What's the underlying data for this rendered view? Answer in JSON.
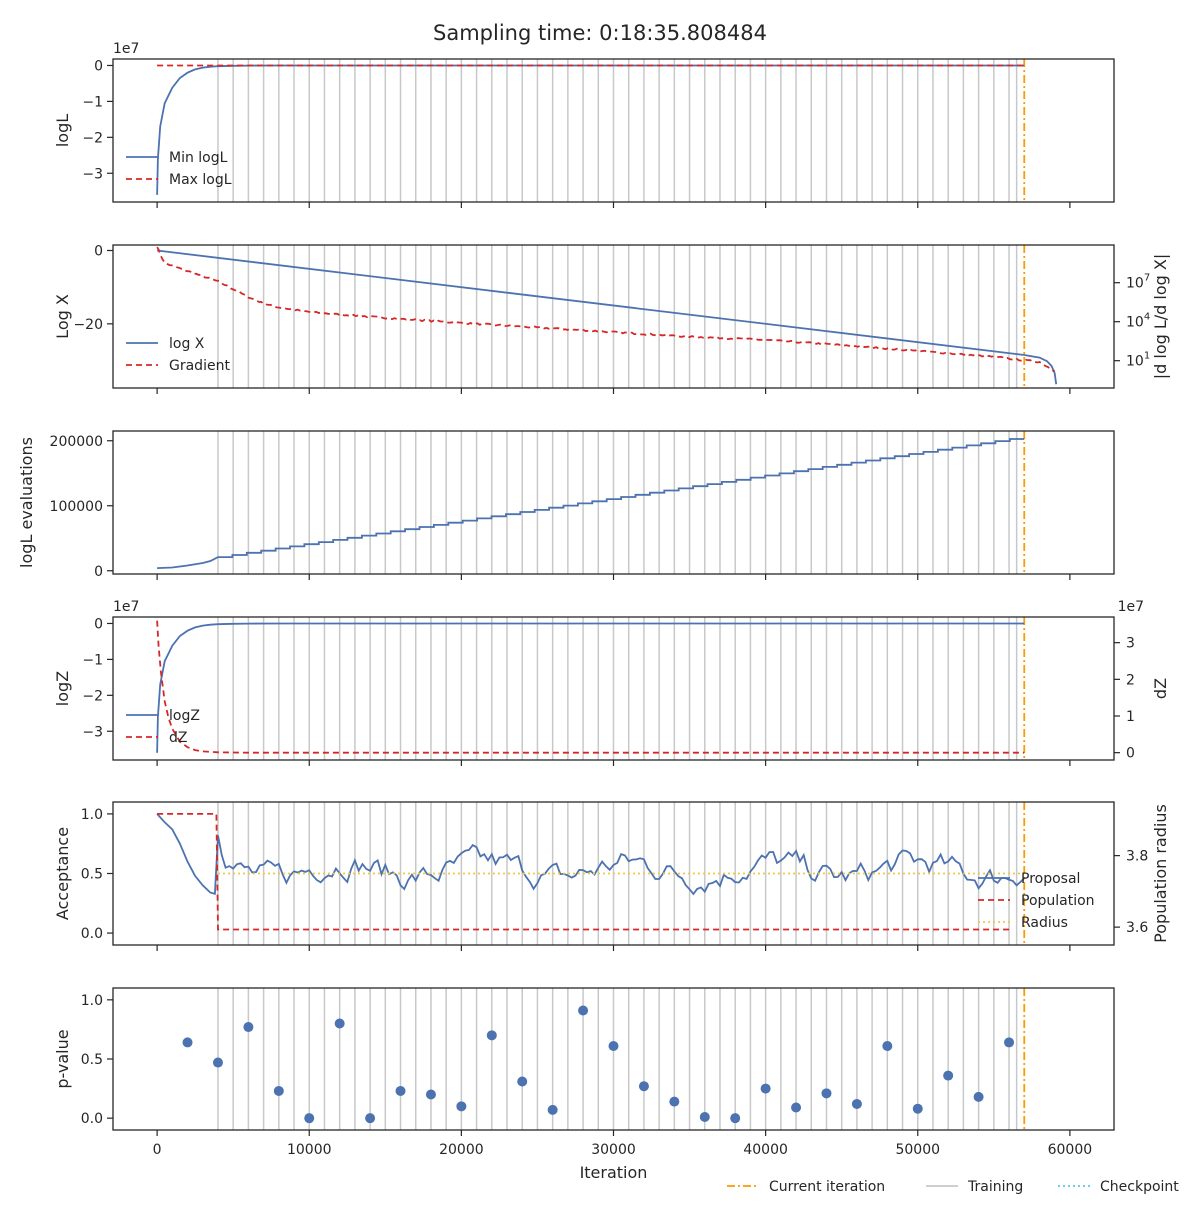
{
  "title": "Sampling time: 0:18:35.808484",
  "colors": {
    "blue": "#4c72b0",
    "red": "#d62728",
    "orange": "#ff9900",
    "grey": "#c8c8c8",
    "gold": "#f2c744",
    "cyan": "#5bc8e0"
  },
  "xlabel": "Iteration",
  "x_ticks": [
    0,
    10000,
    20000,
    30000,
    40000,
    50000,
    60000
  ],
  "x_tick_labels": [
    "0",
    "10000",
    "20000",
    "30000",
    "40000",
    "50000",
    "60000"
  ],
  "xlim": [
    -2900,
    62900
  ],
  "current_iteration": 57000,
  "training_iterations": [
    4000,
    5000,
    6000,
    7000,
    8000,
    9000,
    10000,
    11000,
    12000,
    13000,
    14000,
    15000,
    16000,
    17000,
    18000,
    19000,
    20000,
    21000,
    22000,
    23000,
    24000,
    25000,
    26000,
    27000,
    28000,
    29000,
    30000,
    31000,
    32000,
    33000,
    34000,
    35000,
    36000,
    37000,
    38000,
    39000,
    40000,
    41000,
    42000,
    43000,
    44000,
    45000,
    46000,
    47000,
    48000,
    49000,
    50000,
    51000,
    52000,
    53000,
    54000,
    55000,
    56000,
    56500
  ],
  "fig_legend": [
    "Current iteration",
    "Training",
    "Checkpoint"
  ],
  "chart_data": [
    {
      "type": "line",
      "panel": "logL",
      "ylabel": "logL",
      "y_ticks": [
        0,
        -1,
        -2,
        -3
      ],
      "y_tick_labels": [
        "0",
        "−1",
        "−2",
        "−3"
      ],
      "offset_label": "1e7",
      "ylim": [
        -3.8,
        0.18
      ],
      "unit": "1e7",
      "legend": [
        "Min logL",
        "Max logL"
      ],
      "series": [
        {
          "name": "Min logL",
          "style": "solid",
          "x": [
            0,
            50,
            200,
            500,
            1000,
            1500,
            2000,
            2500,
            3000,
            3500,
            4000,
            5000,
            6000,
            8000,
            57000
          ],
          "y": [
            -3.6,
            -2.6,
            -1.7,
            -1.05,
            -0.62,
            -0.35,
            -0.2,
            -0.11,
            -0.06,
            -0.035,
            -0.02,
            -0.008,
            -0.003,
            -0.001,
            0.0
          ]
        },
        {
          "name": "Max logL",
          "style": "dashed",
          "x": [
            0,
            57000
          ],
          "y": [
            0.0,
            0.0
          ]
        }
      ]
    },
    {
      "type": "line",
      "panel": "logX",
      "ylabel": "Log X",
      "y_ticks": [
        0,
        -20
      ],
      "y_tick_labels": [
        "0",
        "−20"
      ],
      "ylim": [
        -37.5,
        1.5
      ],
      "right_ylabel": "|d log L/d log X|",
      "right_ticks": [
        1,
        4,
        7
      ],
      "right_tick_labels": [
        "10",
        "10",
        "10"
      ],
      "right_tick_exponents": [
        "1",
        "4",
        "7"
      ],
      "right_ylim_log10": [
        -1.1,
        9.9
      ],
      "legend": [
        "log X",
        "Gradient"
      ],
      "series": [
        {
          "name": "log X",
          "style": "solid",
          "x": [
            0,
            57000,
            58000,
            58500,
            58800,
            59000,
            59100
          ],
          "y": [
            0,
            -28.5,
            -29.2,
            -30.2,
            -31.5,
            -33.5,
            -36.5
          ]
        },
        {
          "name": "Gradient",
          "style": "dashed",
          "log10": true,
          "x": [
            0,
            200,
            500,
            1000,
            2000,
            3000,
            4000,
            5000,
            6000,
            7000,
            8000,
            10000,
            12000,
            15000,
            20000,
            25000,
            30000,
            35000,
            40000,
            45000,
            50000,
            55000,
            58000,
            59000
          ],
          "y": [
            9.8,
            9.2,
            8.5,
            8.3,
            7.9,
            7.5,
            7.1,
            6.5,
            5.9,
            5.4,
            5.1,
            4.75,
            4.55,
            4.3,
            3.9,
            3.55,
            3.2,
            2.85,
            2.6,
            2.2,
            1.75,
            1.3,
            0.9,
            0.2
          ]
        }
      ]
    },
    {
      "type": "line",
      "panel": "likelihood_evaluations",
      "ylabel": "logL evaluations",
      "y_ticks": [
        0,
        100000,
        200000
      ],
      "y_tick_labels": [
        "0",
        "100000",
        "200000"
      ],
      "ylim": [
        -5000,
        215000
      ],
      "series": [
        {
          "name": "",
          "style": "step",
          "x": [
            0,
            1000,
            2000,
            3000,
            3500,
            4000,
            57000
          ],
          "y": [
            4000,
            5000,
            8000,
            12000,
            15000,
            21000,
            206000
          ]
        }
      ]
    },
    {
      "type": "line",
      "panel": "logZ",
      "ylabel": "logZ",
      "y_ticks": [
        0,
        -1,
        -2,
        -3
      ],
      "y_tick_labels": [
        "0",
        "−1",
        "−2",
        "−3"
      ],
      "offset_label": "1e7",
      "ylim": [
        -3.8,
        0.18
      ],
      "right_ylabel": "dZ",
      "right_ticks": [
        0,
        1,
        2,
        3
      ],
      "right_tick_labels": [
        "0",
        "1",
        "2",
        "3"
      ],
      "right_offset_label": "1e7",
      "right_ylim": [
        -0.2,
        3.7
      ],
      "legend": [
        "logZ",
        "dZ"
      ],
      "series": [
        {
          "name": "logZ",
          "style": "solid",
          "x": [
            0,
            50,
            200,
            500,
            1000,
            1500,
            2000,
            2500,
            3000,
            3500,
            4000,
            5000,
            6000,
            8000,
            57000
          ],
          "y": [
            -3.6,
            -2.6,
            -1.7,
            -1.05,
            -0.62,
            -0.35,
            -0.2,
            -0.11,
            -0.06,
            -0.035,
            -0.02,
            -0.008,
            -0.003,
            -0.001,
            0.0
          ]
        },
        {
          "name": "dZ",
          "style": "dashed",
          "axis": "right",
          "x": [
            0,
            100,
            250,
            500,
            750,
            1000,
            1500,
            2000,
            2500,
            3000,
            4000,
            5000,
            6000,
            57000
          ],
          "y": [
            3.6,
            2.9,
            2.2,
            1.4,
            0.95,
            0.65,
            0.3,
            0.15,
            0.07,
            0.035,
            0.01,
            0.004,
            0.0,
            0.0
          ]
        }
      ]
    },
    {
      "type": "line",
      "panel": "acceptance",
      "ylabel": "Acceptance",
      "y_ticks": [
        0.0,
        0.5,
        1.0
      ],
      "y_tick_labels": [
        "0.0",
        "0.5",
        "1.0"
      ],
      "ylim": [
        -0.1,
        1.1
      ],
      "right_ylabel": "Population radius",
      "right_ticks": [
        3.6,
        3.8
      ],
      "right_tick_labels": [
        "3.6",
        "3.8"
      ],
      "right_ylim": [
        3.55,
        3.95
      ],
      "legend": [
        "Proposal",
        "Population",
        "Radius"
      ],
      "series": [
        {
          "name": "Proposal",
          "style": "solid",
          "x": [
            0,
            500,
            1000,
            1500,
            2000,
            2500,
            3000,
            3500,
            3800,
            4000,
            57000
          ],
          "y": [
            1.0,
            0.93,
            0.87,
            0.75,
            0.6,
            0.48,
            0.4,
            0.34,
            0.33,
            0.82,
            0.6
          ],
          "noisy_after": 4000,
          "noise_mean": 0.53
        },
        {
          "name": "Population",
          "style": "dashed",
          "x": [
            0,
            3900,
            4000,
            56000
          ],
          "y": [
            1.0,
            1.0,
            0.03,
            0.03
          ]
        },
        {
          "name": "Radius",
          "style": "dotted",
          "x": [
            4000,
            57000
          ],
          "y": [
            0.5,
            0.5
          ]
        }
      ]
    },
    {
      "type": "scatter",
      "panel": "p_value",
      "ylabel": "p-value",
      "y_ticks": [
        0.0,
        0.5,
        1.0
      ],
      "y_tick_labels": [
        "0.0",
        "0.5",
        "1.0"
      ],
      "ylim": [
        -0.1,
        1.1
      ],
      "series": [
        {
          "name": "",
          "x": [
            2000,
            4000,
            6000,
            8000,
            10000,
            12000,
            14000,
            16000,
            18000,
            20000,
            22000,
            24000,
            26000,
            28000,
            30000,
            32000,
            34000,
            36000,
            38000,
            40000,
            42000,
            44000,
            46000,
            48000,
            50000,
            52000,
            54000,
            56000
          ],
          "y": [
            0.64,
            0.47,
            0.77,
            0.23,
            0.0,
            0.8,
            0.0,
            0.23,
            0.2,
            0.1,
            0.7,
            0.31,
            0.07,
            0.91,
            0.61,
            0.27,
            0.14,
            0.01,
            0.0,
            0.25,
            0.09,
            0.21,
            0.12,
            0.61,
            0.08,
            0.36,
            0.18,
            0.64
          ]
        }
      ]
    }
  ]
}
